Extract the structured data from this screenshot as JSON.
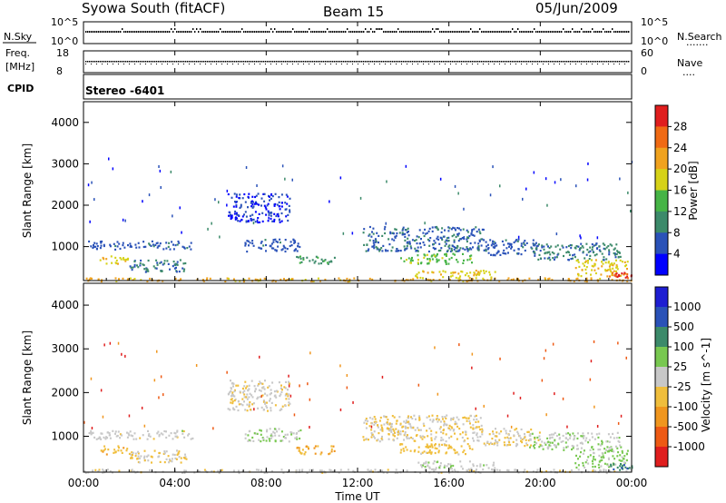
{
  "header": {
    "station": "Syowa South (fitACF)",
    "beam": "Beam 15",
    "date": "05/Jun/2009"
  },
  "noise_panel": {
    "left_label": "N.Sky",
    "left_ticks": [
      "10^5",
      "10^0"
    ],
    "right_ticks": [
      "10^5",
      "10^0"
    ],
    "right_label": "N.Search",
    "right_legend": "......."
  },
  "freq_panel": {
    "left_label_1": "Freq.",
    "left_label_2": "[MHz]",
    "left_ticks": [
      "18",
      "8"
    ],
    "right_ticks": [
      "60",
      "0"
    ],
    "right_label": "Nave",
    "right_legend": "....",
    "cpid_label": "CPID",
    "cpid_value": "Stereo -6401"
  },
  "colors": {
    "power": [
      "#0000ff",
      "#2a52b8",
      "#3c8a6a",
      "#46b446",
      "#d6d218",
      "#f0a21e",
      "#f06a14",
      "#e01e1e"
    ],
    "velocity": [
      "#e01e1e",
      "#ee5a14",
      "#f0961e",
      "#f0be3c",
      "#c8c8c8",
      "#78c850",
      "#3c8a6a",
      "#2a52b8",
      "#1e1ed2"
    ]
  },
  "chart_data": [
    {
      "type": "heatmap",
      "title": "",
      "xlabel": "Time UT",
      "ylabel": "Slant Range [km]",
      "x_ticks": [
        "00:00",
        "04:00",
        "08:00",
        "12:00",
        "16:00",
        "20:00",
        "00:00"
      ],
      "xlim_hours": [
        0,
        24
      ],
      "y_ticks": [
        1000,
        2000,
        3000,
        4000
      ],
      "ylim_km": [
        180,
        4500
      ],
      "colorbar_label": "Power [dB]",
      "colorbar_ticks": [
        "4",
        "8",
        "12",
        "16",
        "20",
        "24",
        "28"
      ],
      "clim": [
        0,
        30
      ],
      "echo_regions": [
        {
          "t": [
            0.0,
            24.0
          ],
          "r": [
            180,
            260
          ],
          "value": 20
        },
        {
          "t": [
            0.2,
            4.8
          ],
          "r": [
            950,
            1150
          ],
          "value": 6
        },
        {
          "t": [
            0.7,
            2.0
          ],
          "r": [
            600,
            800
          ],
          "value": 18
        },
        {
          "t": [
            2.0,
            4.5
          ],
          "r": [
            400,
            700
          ],
          "value": 8
        },
        {
          "t": [
            6.3,
            9.0
          ],
          "r": [
            1600,
            2300
          ],
          "value": 4
        },
        {
          "t": [
            7.0,
            9.5
          ],
          "r": [
            900,
            1200
          ],
          "value": 6
        },
        {
          "t": [
            9.3,
            11.0
          ],
          "r": [
            600,
            800
          ],
          "value": 10
        },
        {
          "t": [
            12.2,
            17.5
          ],
          "r": [
            900,
            1500
          ],
          "value": 7
        },
        {
          "t": [
            13.8,
            17.0
          ],
          "r": [
            600,
            850
          ],
          "value": 14
        },
        {
          "t": [
            14.5,
            18.0
          ],
          "r": [
            250,
            450
          ],
          "value": 18
        },
        {
          "t": [
            17.5,
            20.0
          ],
          "r": [
            800,
            1200
          ],
          "value": 6
        },
        {
          "t": [
            19.5,
            23.5
          ],
          "r": [
            700,
            1100
          ],
          "value": 8
        },
        {
          "t": [
            21.5,
            23.8
          ],
          "r": [
            300,
            700
          ],
          "value": 18
        },
        {
          "t": [
            23.0,
            24.0
          ],
          "r": [
            250,
            400
          ],
          "value": 27
        }
      ]
    },
    {
      "type": "heatmap",
      "title": "",
      "xlabel": "Time UT",
      "ylabel": "Slant Range [km]",
      "x_ticks": [
        "00:00",
        "04:00",
        "08:00",
        "12:00",
        "16:00",
        "20:00",
        "00:00"
      ],
      "xlim_hours": [
        0,
        24
      ],
      "y_ticks": [
        1000,
        2000,
        3000,
        4000
      ],
      "ylim_km": [
        180,
        4500
      ],
      "colorbar_label": "Velocity [m s^-1]",
      "colorbar_ticks": [
        "1000",
        "500",
        "100",
        "25",
        "-25",
        "-100",
        "-500",
        "-1000"
      ],
      "clim": [
        -1200,
        1200
      ],
      "echo_regions": [
        {
          "t": [
            0.0,
            24.0
          ],
          "r": [
            180,
            260
          ],
          "value": -30
        },
        {
          "t": [
            0.2,
            4.8
          ],
          "r": [
            950,
            1150
          ],
          "value": -10
        },
        {
          "t": [
            0.7,
            2.0
          ],
          "r": [
            600,
            800
          ],
          "value": -300
        },
        {
          "t": [
            2.0,
            4.5
          ],
          "r": [
            400,
            700
          ],
          "value": -150
        },
        {
          "t": [
            6.3,
            9.0
          ],
          "r": [
            1600,
            2300
          ],
          "value": -60
        },
        {
          "t": [
            7.0,
            9.5
          ],
          "r": [
            900,
            1200
          ],
          "value": 60
        },
        {
          "t": [
            9.3,
            11.0
          ],
          "r": [
            600,
            800
          ],
          "value": -400
        },
        {
          "t": [
            12.2,
            17.5
          ],
          "r": [
            900,
            1500
          ],
          "value": -120
        },
        {
          "t": [
            13.8,
            17.0
          ],
          "r": [
            600,
            850
          ],
          "value": -250
        },
        {
          "t": [
            14.5,
            18.0
          ],
          "r": [
            250,
            450
          ],
          "value": 60
        },
        {
          "t": [
            17.5,
            20.0
          ],
          "r": [
            800,
            1200
          ],
          "value": -150
        },
        {
          "t": [
            19.5,
            23.5
          ],
          "r": [
            700,
            1100
          ],
          "value": 80
        },
        {
          "t": [
            21.5,
            23.8
          ],
          "r": [
            300,
            700
          ],
          "value": 200
        },
        {
          "t": [
            23.0,
            24.0
          ],
          "r": [
            250,
            400
          ],
          "value": 600
        }
      ]
    }
  ]
}
